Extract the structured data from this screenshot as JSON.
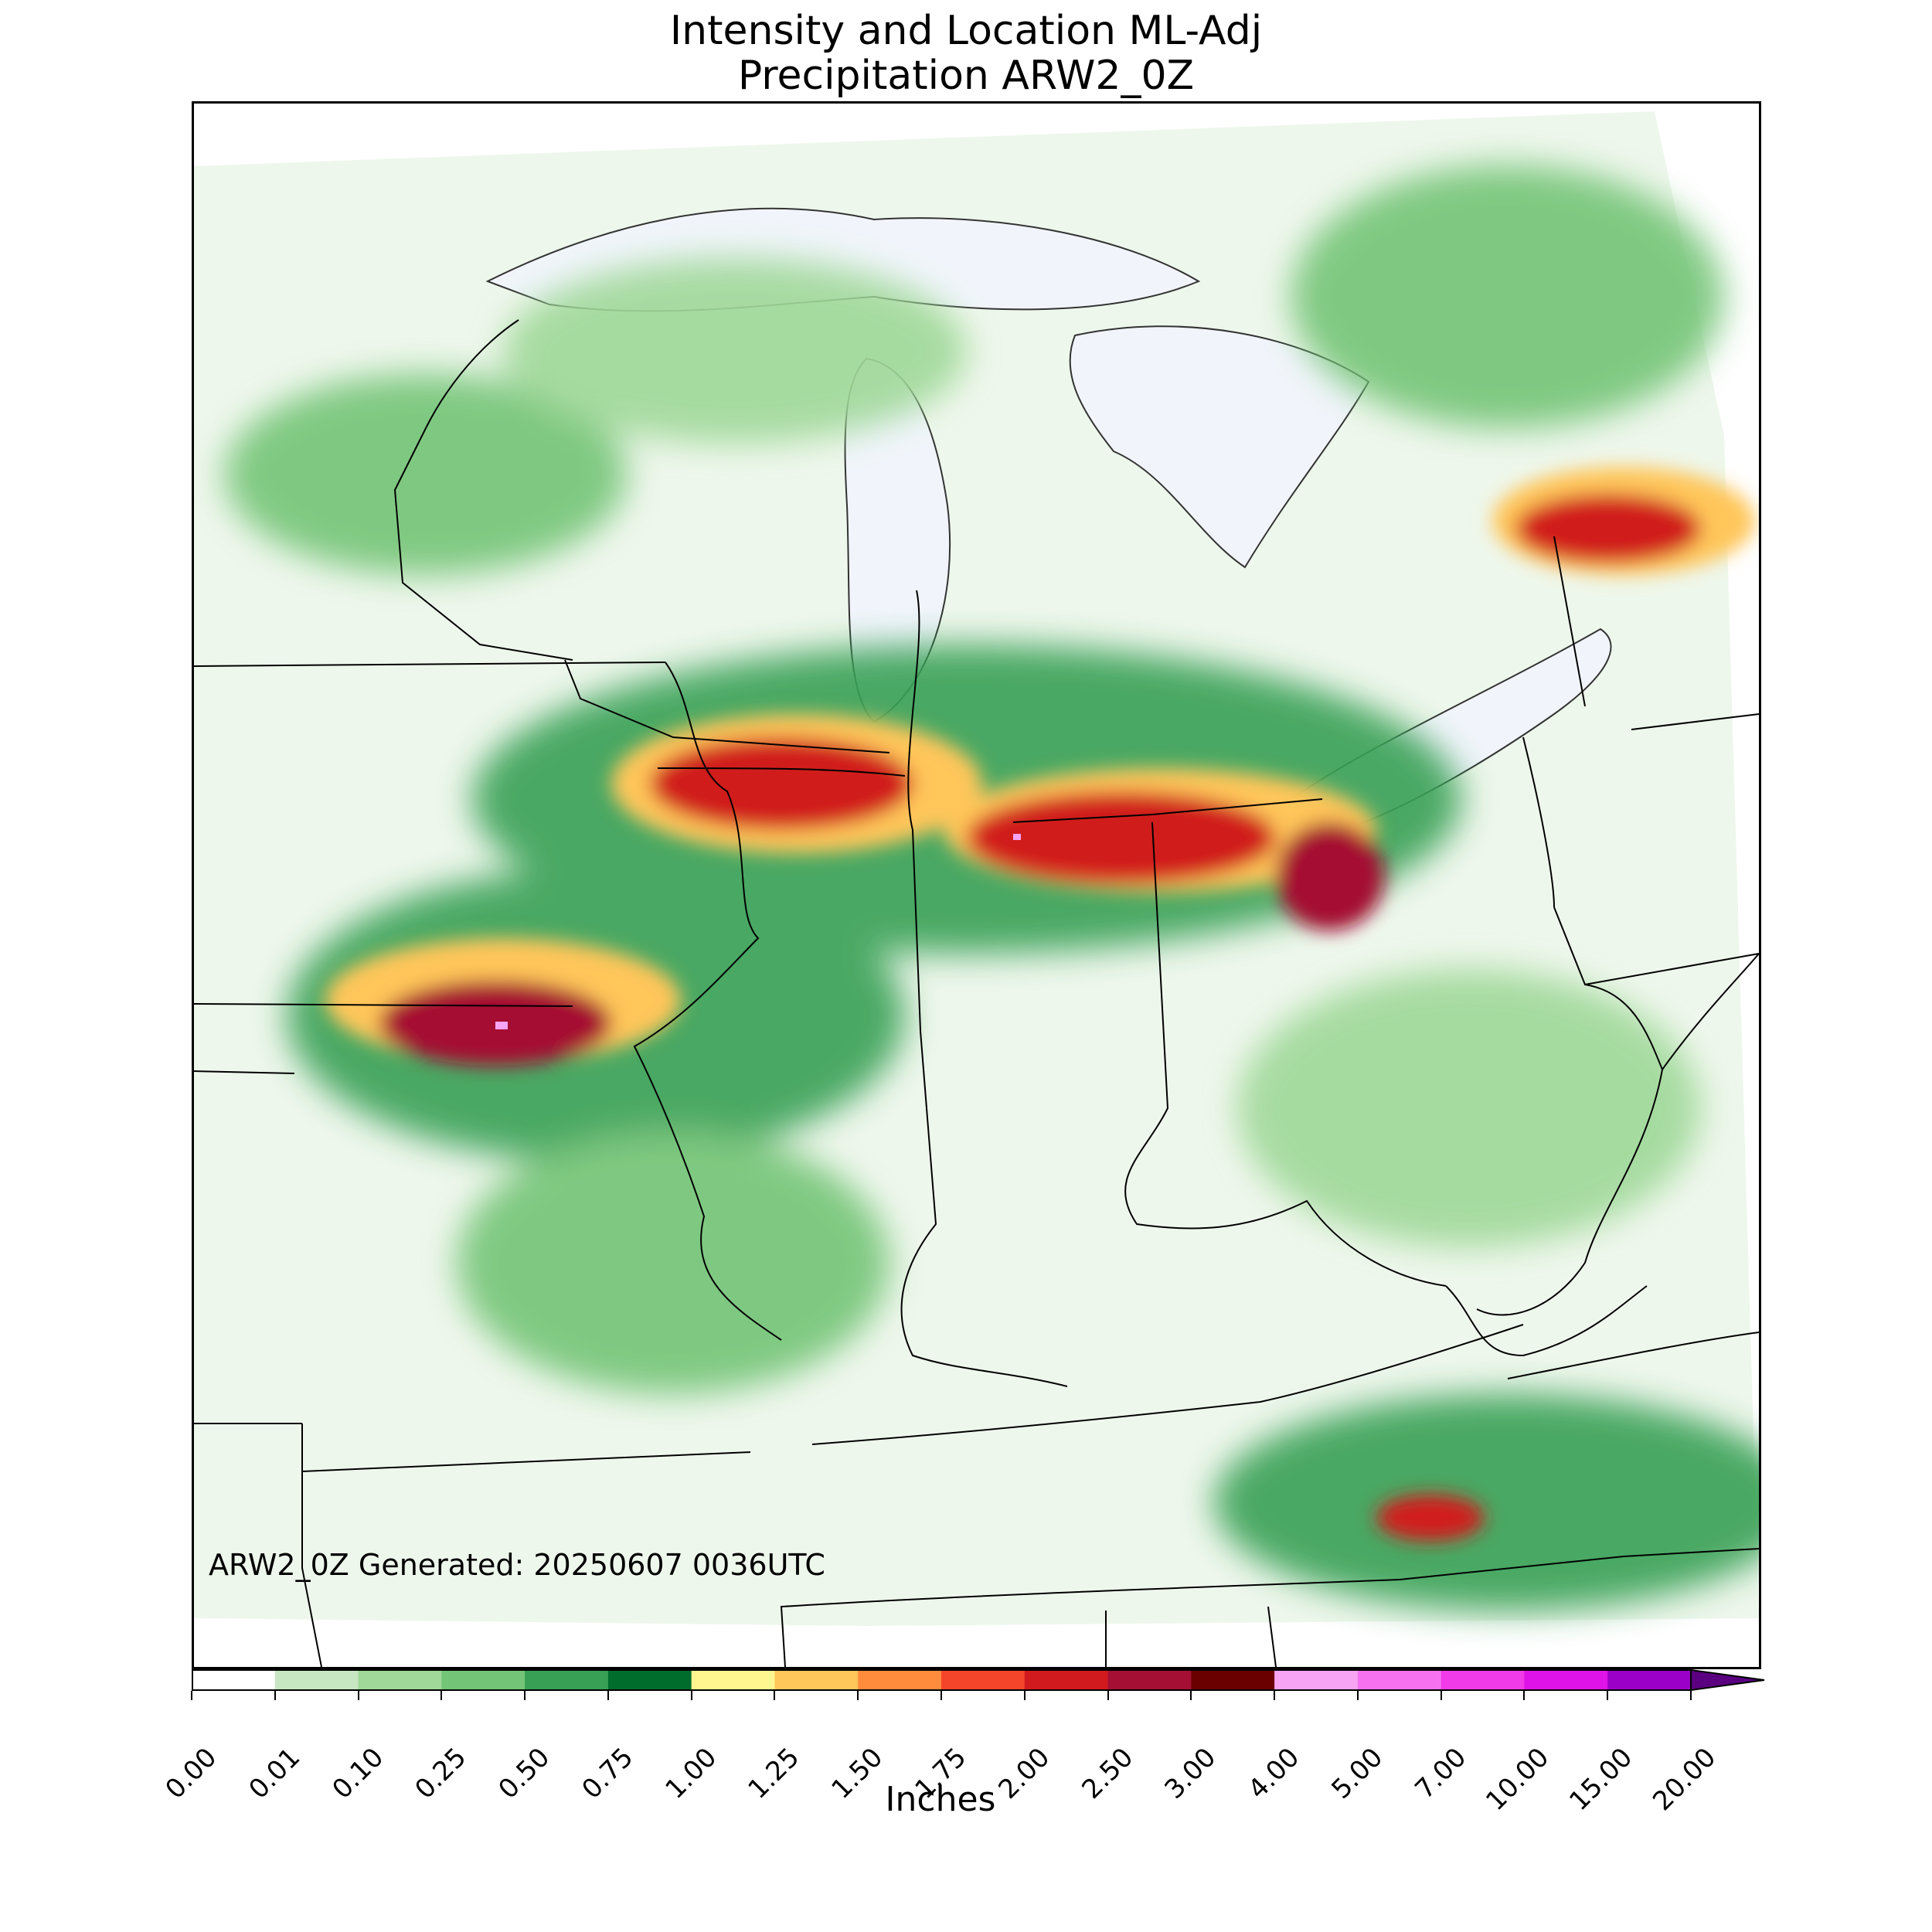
{
  "title": {
    "line1": "Intensity and Location ML-Adj",
    "line2": "Precipitation ARW2_0Z"
  },
  "generated_label": "ARW2_0Z Generated: 20250607 0036UTC",
  "colorbar": {
    "label": "Inches",
    "extend": "max",
    "ticks": [
      "0.00",
      "0.01",
      "0.10",
      "0.25",
      "0.50",
      "0.75",
      "1.00",
      "1.25",
      "1.50",
      "1.75",
      "2.00",
      "2.50",
      "3.00",
      "4.00",
      "5.00",
      "7.00",
      "10.00",
      "15.00",
      "20.00"
    ],
    "colors": [
      "#ffffff",
      "#c7e6c2",
      "#9fd898",
      "#73c476",
      "#37a055",
      "#006d2c",
      "#fff68f",
      "#ffc65a",
      "#ff8b3d",
      "#f4452a",
      "#d11a1e",
      "#a50f33",
      "#6b0000",
      "#f8a4f4",
      "#f571f0",
      "#f13ae8",
      "#dd13e7",
      "#9b00c9"
    ],
    "extend_color": "#5a0080"
  },
  "map": {
    "projection_region": "Midwest / Great Lakes / Ohio Valley",
    "lake_color": "#f1f5fb",
    "boundary_color": "#000000"
  }
}
